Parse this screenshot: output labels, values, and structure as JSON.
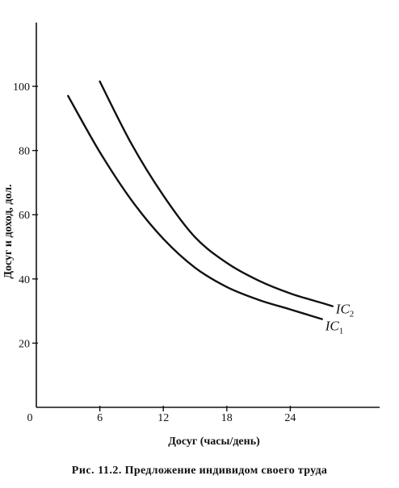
{
  "chart_data": {
    "type": "line",
    "xlabel": "Досуг (часы/день)",
    "ylabel": "Досуг и доход, дол.",
    "x_ticks": [
      0,
      6,
      12,
      18,
      24
    ],
    "y_ticks": [
      20,
      40,
      60,
      80,
      100
    ],
    "xlim": [
      0,
      32.5
    ],
    "ylim": [
      0,
      120
    ],
    "grid": false,
    "legend": "none",
    "series": [
      {
        "name": "IC1",
        "points": [
          [
            3,
            97
          ],
          [
            6,
            79.5
          ],
          [
            9,
            64.5
          ],
          [
            12,
            52.5
          ],
          [
            15,
            43.5
          ],
          [
            18,
            37.5
          ],
          [
            21,
            33.5
          ],
          [
            24,
            30.5
          ],
          [
            27,
            27.5
          ]
        ]
      },
      {
        "name": "IC2",
        "points": [
          [
            6,
            101.5
          ],
          [
            9,
            82
          ],
          [
            12,
            66
          ],
          [
            15,
            53
          ],
          [
            18,
            45
          ],
          [
            21,
            39.5
          ],
          [
            24,
            35.5
          ],
          [
            27,
            32.5
          ],
          [
            28,
            31.5
          ]
        ]
      }
    ],
    "annotations": [
      {
        "text": "IC",
        "sub": "2",
        "series": "IC2"
      },
      {
        "text": "IC",
        "sub": "1",
        "series": "IC1"
      }
    ]
  },
  "caption": {
    "prefix": "Рис. 11.2.",
    "text": "Предложение индивидом своего труда"
  },
  "colors": {
    "ink": "#111111",
    "background": "#ffffff"
  }
}
